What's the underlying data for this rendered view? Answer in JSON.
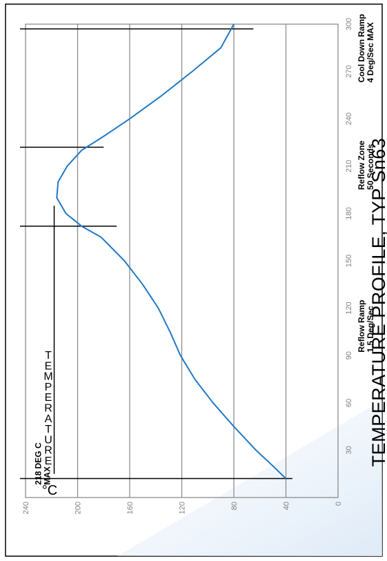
{
  "chart_data": {
    "type": "line",
    "title": "TEMPERATURE PROFILE, TYP Sn63",
    "ylabel_letters": [
      "T",
      "E",
      "M",
      "P",
      "E",
      "R",
      "A",
      "T",
      "U",
      "R",
      "E"
    ],
    "yunit": "°C",
    "xlim": [
      0,
      300
    ],
    "ylim": [
      0,
      240
    ],
    "xticks": [
      "30",
      "60",
      "90",
      "120",
      "150",
      "180",
      "210",
      "240",
      "270",
      "300"
    ],
    "yticks": [
      "0",
      "40",
      "80",
      "120",
      "160",
      "200",
      "240"
    ],
    "grid": true,
    "series": [
      {
        "color": "#1f77c4",
        "x": [
          12,
          20,
          30,
          45,
          60,
          75,
          90,
          105,
          120,
          135,
          150,
          165,
          172,
          180,
          190,
          200,
          210,
          220,
          230,
          240,
          255,
          270,
          285,
          300
        ],
        "y": [
          40,
          50,
          63,
          80,
          96,
          110,
          121,
          129,
          138,
          150,
          164,
          182,
          197,
          209,
          216,
          215,
          208,
          197,
          178,
          160,
          135,
          112,
          90,
          80
        ]
      }
    ],
    "max_marker": {
      "y": 218,
      "x_from": 15,
      "x_to": 185
    },
    "zone_marks": [
      {
        "x": 12,
        "y_from": 35,
        "y_to": 240
      },
      {
        "x": 172,
        "y_from": 170,
        "y_to": 240
      },
      {
        "x": 222,
        "y_from": 180,
        "y_to": 240
      },
      {
        "x": 297,
        "y_from": 65,
        "y_to": 240
      }
    ],
    "annotations": [
      {
        "lines": [
          "218 DEG C",
          "MAX"
        ],
        "x": 8,
        "y": 228
      },
      {
        "lines": [
          "Reflow Ramp",
          "1.5 Deg/Sec"
        ],
        "x": 92,
        "y": -20
      },
      {
        "lines": [
          "Reflow  Zone",
          "50 Seconds"
        ],
        "x": 195,
        "y": -20
      },
      {
        "lines": [
          "Cool Down Ramp",
          "4 Deg/Sec MAX"
        ],
        "x": 263,
        "y": -20
      }
    ]
  }
}
